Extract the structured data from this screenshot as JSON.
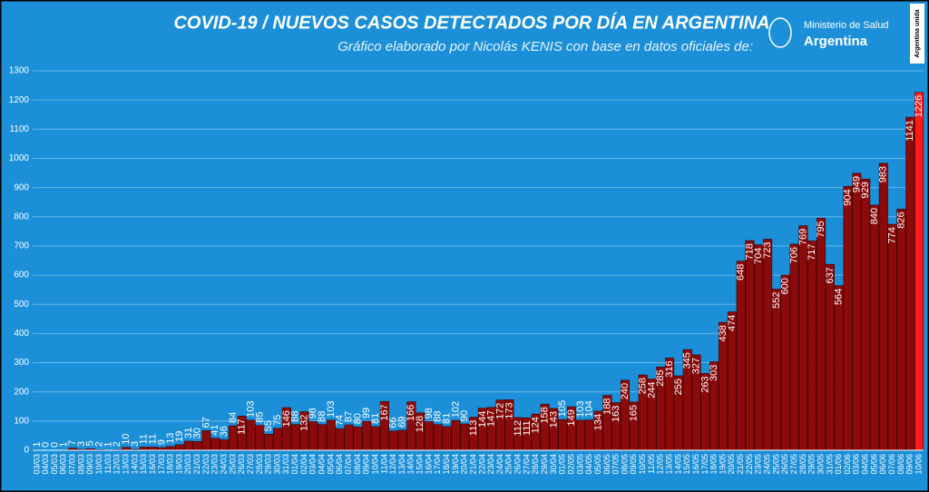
{
  "chart_data": {
    "type": "bar",
    "title": "COVID-19  /  NUEVOS CASOS DETECTADOS POR DÍA EN ARGENTINA",
    "subtitle": "Gráfico elaborado por Nicolás KENIS con base en datos oficiales de:",
    "logo": {
      "line1": "Ministerio de Salud",
      "line2": "Argentina",
      "badge": "Argentina unida"
    },
    "categories": [
      "03/03",
      "04/03",
      "05/03",
      "06/03",
      "07/03",
      "08/03",
      "09/03",
      "10/03",
      "11/03",
      "12/03",
      "13/03",
      "14/03",
      "15/03",
      "16/03",
      "17/03",
      "18/03",
      "19/03",
      "20/03",
      "21/03",
      "22/03",
      "23/03",
      "24/03",
      "25/03",
      "26/03",
      "27/03",
      "28/03",
      "29/03",
      "30/03",
      "31/03",
      "01/04",
      "02/04",
      "03/04",
      "04/04",
      "05/04",
      "06/04",
      "07/04",
      "08/04",
      "09/04",
      "10/04",
      "11/04",
      "12/04",
      "13/04",
      "14/04",
      "15/04",
      "16/04",
      "17/04",
      "18/04",
      "19/04",
      "20/04",
      "21/04",
      "22/04",
      "23/04",
      "24/04",
      "25/04",
      "26/04",
      "27/04",
      "28/04",
      "29/04",
      "30/04",
      "01/05",
      "02/05",
      "03/05",
      "04/05",
      "05/05",
      "06/05",
      "07/05",
      "08/05",
      "09/05",
      "10/05",
      "11/05",
      "12/05",
      "13/05",
      "14/05",
      "15/05",
      "16/05",
      "17/05",
      "18/05",
      "19/05",
      "20/05",
      "21/05",
      "22/05",
      "23/05",
      "24/05",
      "25/05",
      "26/05",
      "27/05",
      "28/05",
      "29/05",
      "30/05",
      "31/05",
      "01/06",
      "02/06",
      "03/06",
      "04/06",
      "05/06",
      "06/06",
      "07/06",
      "08/06",
      "09/06",
      "10/06"
    ],
    "values": [
      1,
      0,
      0,
      1,
      7,
      3,
      5,
      2,
      1,
      2,
      10,
      3,
      11,
      11,
      9,
      13,
      19,
      31,
      30,
      67,
      41,
      36,
      84,
      117,
      103,
      85,
      55,
      75,
      146,
      88,
      132,
      98,
      88,
      103,
      74,
      87,
      80,
      99,
      81,
      167,
      66,
      69,
      166,
      128,
      98,
      88,
      81,
      102,
      90,
      113,
      144,
      147,
      172,
      173,
      112,
      111,
      124,
      158,
      143,
      105,
      149,
      103,
      104,
      134,
      188,
      163,
      240,
      165,
      258,
      244,
      285,
      316,
      255,
      345,
      327,
      263,
      303,
      438,
      474,
      648,
      718,
      704,
      723,
      552,
      600,
      706,
      769,
      717,
      795,
      637,
      564,
      904,
      949,
      929,
      840,
      983,
      774,
      826,
      1141,
      1226
    ],
    "color": "#8b0a0a",
    "highlight_color": "#ff1a1a",
    "ylim": [
      0,
      1300
    ],
    "yticks": [
      0,
      100,
      200,
      300,
      400,
      500,
      600,
      700,
      800,
      900,
      1000,
      1100,
      1200,
      1300
    ],
    "grid": true
  }
}
